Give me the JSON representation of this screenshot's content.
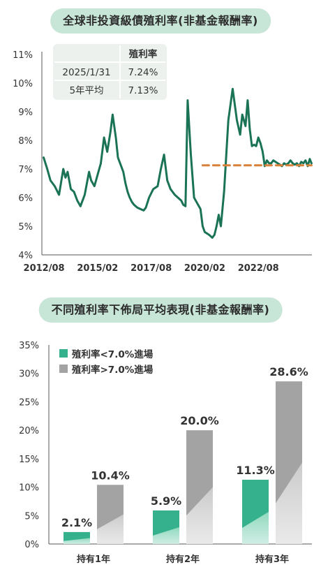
{
  "chart_data": [
    {
      "type": "line",
      "title": "全球非投資級債殖利率(非基金報酬率)",
      "y_ticks": [
        "11%",
        "10%",
        "9%",
        "8%",
        "7%",
        "6%",
        "5%",
        "4%"
      ],
      "x_ticks": [
        "2012/08",
        "2015/02",
        "2017/08",
        "2020/02",
        "2022/08"
      ],
      "ylim": [
        4,
        11
      ],
      "xlim": [
        2012.5,
        2025.1
      ],
      "series": [
        {
          "color": "#1b7355",
          "x": [
            2012.58,
            2012.75,
            2012.9,
            2013.1,
            2013.3,
            2013.5,
            2013.6,
            2013.7,
            2013.85,
            2014.0,
            2014.15,
            2014.3,
            2014.5,
            2014.7,
            2014.8,
            2014.95,
            2015.1,
            2015.25,
            2015.4,
            2015.55,
            2015.7,
            2015.8,
            2015.95,
            2016.05,
            2016.15,
            2016.3,
            2016.4,
            2016.5,
            2016.6,
            2016.7,
            2016.8,
            2016.95,
            2017.1,
            2017.25,
            2017.35,
            2017.5,
            2017.7,
            2017.9,
            2018.05,
            2018.2,
            2018.35,
            2018.5,
            2018.7,
            2018.85,
            2019.0,
            2019.1,
            2019.2,
            2019.3,
            2019.45,
            2019.6,
            2019.75,
            2019.9,
            2020.0,
            2020.1,
            2020.2,
            2020.3,
            2020.45,
            2020.55,
            2020.65,
            2020.75,
            2020.85,
            2021.0,
            2021.2,
            2021.4,
            2021.6,
            2021.75,
            2021.85,
            2022.0,
            2022.1,
            2022.2,
            2022.3,
            2022.4,
            2022.5,
            2022.6,
            2022.7,
            2022.8,
            2022.9,
            2023.0,
            2023.1,
            2023.2,
            2023.3,
            2023.4,
            2023.5,
            2023.6,
            2023.7,
            2023.8,
            2023.9,
            2024.0,
            2024.1,
            2024.2,
            2024.3,
            2024.4,
            2024.5,
            2024.6,
            2024.7,
            2024.8,
            2024.9,
            2025.0,
            2025.08
          ],
          "y": [
            7.4,
            7.0,
            6.6,
            6.4,
            6.1,
            7.0,
            6.7,
            6.9,
            6.3,
            6.2,
            5.9,
            5.7,
            6.1,
            6.9,
            6.6,
            6.4,
            6.8,
            7.2,
            8.1,
            7.6,
            8.3,
            8.9,
            8.1,
            7.4,
            7.2,
            6.9,
            6.5,
            6.2,
            6.0,
            5.85,
            5.75,
            5.65,
            5.6,
            5.55,
            5.65,
            6.0,
            6.3,
            6.4,
            7.0,
            7.5,
            6.6,
            6.3,
            6.1,
            6.0,
            5.9,
            5.75,
            5.7,
            9.4,
            7.5,
            6.0,
            5.8,
            5.6,
            5.0,
            4.8,
            4.75,
            4.7,
            4.6,
            4.7,
            5.0,
            5.4,
            5.0,
            6.2,
            8.7,
            9.8,
            8.7,
            8.2,
            8.9,
            8.5,
            9.4,
            8.4,
            7.8,
            7.85,
            7.8,
            8.1,
            7.9,
            7.6,
            7.1,
            7.3,
            7.2,
            7.2,
            7.3,
            7.25,
            7.2,
            7.15,
            7.1,
            7.2,
            7.15,
            7.2,
            7.3,
            7.2,
            7.15,
            7.2,
            7.1,
            7.25,
            7.2,
            7.3,
            7.1,
            7.35,
            7.2
          ]
        },
        {
          "color": "#d7813a",
          "dashed": true,
          "x": [
            2020.0,
            2025.08
          ],
          "y": [
            7.13,
            7.13
          ]
        }
      ],
      "table": {
        "header": "殖利率",
        "rows": [
          {
            "label": "2025/1/31",
            "value": "7.24%"
          },
          {
            "label": "5年平均",
            "value": "7.13%"
          }
        ]
      }
    },
    {
      "type": "bar",
      "title": "不同殖利率下佈局平均表現(非基金報酬率)",
      "categories": [
        "持有1年",
        "持有2年",
        "持有3年"
      ],
      "y_ticks": [
        "35%",
        "30%",
        "25%",
        "20%",
        "15%",
        "10%",
        "5%",
        "0%"
      ],
      "ylim": [
        0,
        35
      ],
      "series": [
        {
          "name": "殖利率<7.0%進場",
          "color": "#35b18e",
          "values": [
            2.1,
            5.9,
            11.3
          ],
          "labels": [
            "2.1%",
            "5.9%",
            "11.3%"
          ]
        },
        {
          "name": "殖利率>7.0%進場",
          "color": "#a3a3a3",
          "values": [
            10.4,
            20.0,
            28.6
          ],
          "labels": [
            "10.4%",
            "20.0%",
            "28.6%"
          ]
        }
      ]
    }
  ]
}
